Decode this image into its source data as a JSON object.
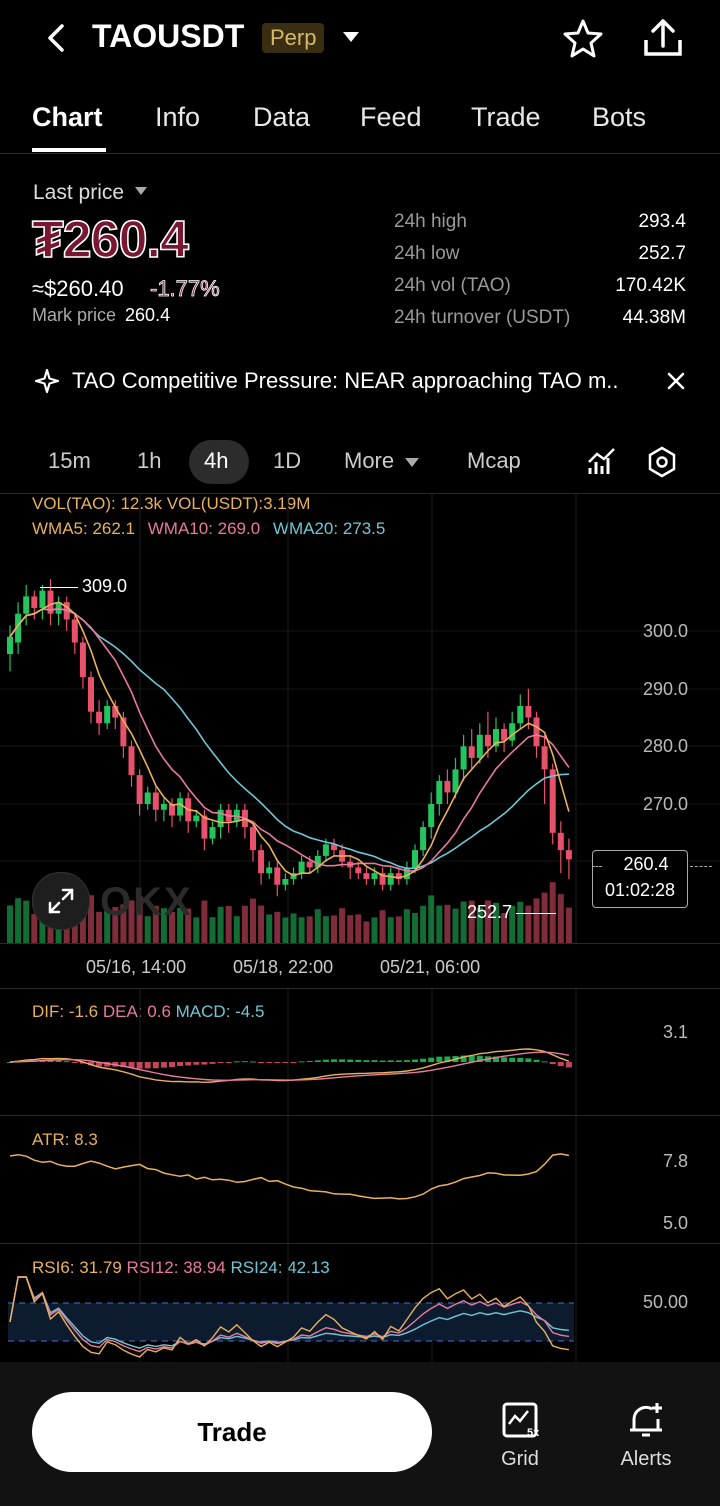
{
  "header": {
    "symbol": "TAOUSDT",
    "badge": "Perp"
  },
  "tabs": [
    {
      "label": "Chart",
      "active": true
    },
    {
      "label": "Info"
    },
    {
      "label": "Data"
    },
    {
      "label": "Feed"
    },
    {
      "label": "Trade"
    },
    {
      "label": "Bots"
    }
  ],
  "price": {
    "last_label": "Last price",
    "last": "₮260.4",
    "usd": "≈$260.40",
    "change": "-1.77%",
    "mark_label": "Mark price",
    "mark": "260.4",
    "down_color": "#e8516b",
    "up_color": "#23c55e"
  },
  "stats": [
    {
      "label": "24h high",
      "value": "293.4"
    },
    {
      "label": "24h low",
      "value": "252.7"
    },
    {
      "label": "24h vol (TAO)",
      "value": "170.42K"
    },
    {
      "label": "24h turnover (USDT)",
      "value": "44.38M"
    }
  ],
  "news": {
    "text": "TAO Competitive Pressure: NEAR approaching TAO m.."
  },
  "timeframes": [
    "15m",
    "1h",
    "4h",
    "1D",
    "More",
    "Mcap"
  ],
  "timeframe_active": "4h",
  "indicators": {
    "vol": "VOL(TAO): 12.3k VOL(USDT):3.19M",
    "wma5": "WMA5: 262.1",
    "wma10": "WMA10: 269.0",
    "wma20": "WMA20: 273.5",
    "macd_dif": "DIF: -1.6",
    "macd_dea": "DEA: 0.6",
    "macd_val": "MACD: -4.5",
    "macd_axis": "3.1",
    "atr": "ATR: 8.3",
    "atr_axis_top": "7.8",
    "atr_axis_bottom": "5.0",
    "rsi6": "RSI6: 31.79",
    "rsi12": "RSI12: 38.94",
    "rsi24": "RSI24: 42.13",
    "rsi_axis": "50.00"
  },
  "chart_data": {
    "type": "candlestick",
    "y_ticks": [
      "300.0",
      "290.0",
      "280.0",
      "270.0"
    ],
    "high_marker": "309.0",
    "low_marker": "252.7",
    "current_price": "260.4",
    "countdown": "01:02:28",
    "x_ticks": [
      "05/16, 14:00",
      "05/18, 22:00",
      "05/21, 06:00"
    ],
    "ylim": [
      250,
      305
    ],
    "candles": [
      [
        296,
        299,
        293,
        301
      ],
      [
        298,
        303,
        296,
        305
      ],
      [
        303,
        306,
        301,
        308
      ],
      [
        306,
        304,
        302,
        307
      ],
      [
        304,
        307,
        302,
        308
      ],
      [
        307,
        303,
        301,
        309
      ],
      [
        303,
        305,
        301,
        306
      ],
      [
        305,
        302,
        300,
        306
      ],
      [
        302,
        298,
        296,
        303
      ],
      [
        298,
        292,
        290,
        299
      ],
      [
        292,
        286,
        284,
        293
      ],
      [
        286,
        284,
        282,
        288
      ],
      [
        284,
        287,
        283,
        288
      ],
      [
        287,
        285,
        283,
        288
      ],
      [
        285,
        280,
        278,
        286
      ],
      [
        280,
        275,
        273,
        281
      ],
      [
        275,
        270,
        268,
        276
      ],
      [
        270,
        272,
        269,
        273
      ],
      [
        272,
        269,
        267,
        273
      ],
      [
        269,
        270,
        267,
        271
      ],
      [
        270,
        268,
        266,
        271
      ],
      [
        268,
        271,
        267,
        272
      ],
      [
        271,
        267,
        265,
        272
      ],
      [
        267,
        268,
        266,
        269
      ],
      [
        268,
        264,
        262,
        269
      ],
      [
        264,
        266,
        263,
        267
      ],
      [
        266,
        269,
        264,
        270
      ],
      [
        269,
        267,
        265,
        270
      ],
      [
        267,
        269,
        266,
        270
      ],
      [
        269,
        266,
        264,
        270
      ],
      [
        266,
        262,
        260,
        267
      ],
      [
        262,
        258,
        256,
        263
      ],
      [
        258,
        259,
        257,
        260
      ],
      [
        259,
        256,
        254,
        260
      ],
      [
        256,
        257,
        255,
        258
      ],
      [
        257,
        258,
        256,
        259
      ],
      [
        258,
        260,
        257,
        261
      ],
      [
        260,
        259,
        258,
        261
      ],
      [
        259,
        261,
        258,
        262
      ],
      [
        261,
        263,
        260,
        264
      ],
      [
        263,
        262,
        261,
        264
      ],
      [
        262,
        260,
        259,
        263
      ],
      [
        260,
        259,
        257,
        261
      ],
      [
        259,
        258,
        257,
        260
      ],
      [
        258,
        257,
        256,
        259
      ],
      [
        257,
        258,
        256,
        259
      ],
      [
        258,
        256,
        255,
        259
      ],
      [
        256,
        258,
        255,
        259
      ],
      [
        258,
        257,
        256,
        259
      ],
      [
        257,
        259,
        256,
        260
      ],
      [
        259,
        262,
        258,
        263
      ],
      [
        262,
        266,
        261,
        267
      ],
      [
        266,
        270,
        264,
        272
      ],
      [
        270,
        274,
        268,
        275
      ],
      [
        274,
        272,
        270,
        276
      ],
      [
        272,
        276,
        271,
        278
      ],
      [
        276,
        280,
        274,
        282
      ],
      [
        280,
        278,
        276,
        283
      ],
      [
        278,
        282,
        277,
        284
      ],
      [
        282,
        280,
        278,
        286
      ],
      [
        280,
        283,
        279,
        285
      ],
      [
        283,
        281,
        279,
        284
      ],
      [
        281,
        284,
        280,
        286
      ],
      [
        284,
        287,
        283,
        289
      ],
      [
        287,
        285,
        283,
        290
      ],
      [
        285,
        280,
        278,
        286
      ],
      [
        280,
        276,
        270,
        282
      ],
      [
        276,
        265,
        263,
        277
      ],
      [
        265,
        262,
        258,
        267
      ],
      [
        262,
        260.4,
        257,
        264
      ]
    ]
  }
}
